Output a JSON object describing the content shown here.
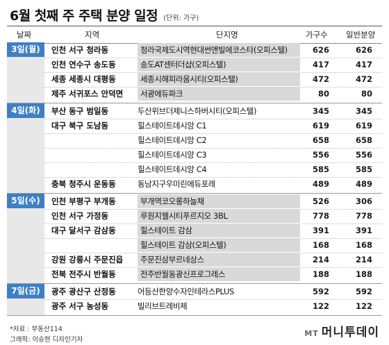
{
  "title": "6월 첫째 주 주택 분양 일정",
  "unit": "(단위: 가구)",
  "header": {
    "date": "날짜",
    "region": "지역",
    "complex": "단지명",
    "total": "가구수",
    "general": "일반분양"
  },
  "groups": [
    {
      "day": "3일(월)",
      "rows": [
        {
          "region": "인천 서구 청라동",
          "complex": "청라국제도시역현대썬앤빌에코스타(오피스텔)",
          "total": "626",
          "general": "626"
        },
        {
          "region": "인천 연수구 송도동",
          "complex": "송도AT센터더샵(오피스텔)",
          "total": "417",
          "general": "417"
        },
        {
          "region": "세종 세종시 대평동",
          "complex": "세종시해피라움시티(오피스텔)",
          "total": "472",
          "general": "472"
        },
        {
          "region": "제주 서귀포스 안덕면",
          "complex": "서광에듀파크",
          "total": "80",
          "general": "80"
        }
      ]
    },
    {
      "day": "4일(화)",
      "rows": [
        {
          "region": "부산 동구 범일동",
          "complex": "두산위브더제니스하버시티(오피스텔)",
          "total": "345",
          "general": "345"
        },
        {
          "region": "대구 북구 도남동",
          "complex": "힐스테이트데시앙 C1",
          "total": "619",
          "general": "619"
        },
        {
          "region": "",
          "complex": "힐스테이트데시앙 C2",
          "total": "658",
          "general": "658"
        },
        {
          "region": "",
          "complex": "힐스테이트데시앙 C3",
          "total": "556",
          "general": "556"
        },
        {
          "region": "",
          "complex": "힐스테이트데시앙 C4",
          "total": "585",
          "general": "585"
        },
        {
          "region": "충북 청주시 운동동",
          "complex": "동남지구우미린에듀포레",
          "total": "489",
          "general": "489"
        }
      ]
    },
    {
      "day": "5일(수)",
      "rows": [
        {
          "region": "인천 부평구 부개동",
          "complex": "부개역코오롱하늘채",
          "total": "526",
          "general": "306"
        },
        {
          "region": "인천 서구 가정동",
          "complex": "루원지웰시티푸르지오 3BL",
          "total": "778",
          "general": "778"
        },
        {
          "region": "대구 달서구 감삼동",
          "complex": "힐스테이트 감삼",
          "total": "391",
          "general": "391"
        },
        {
          "region": "",
          "complex": "힐스테이트 감삼(오피스텔)",
          "total": "168",
          "general": "168"
        },
        {
          "region": "강원 강릉시 주문진읍",
          "complex": "주문진삼부르네상스",
          "total": "214",
          "general": "214"
        },
        {
          "region": "전북 전주시 반월동",
          "complex": "전주반월동광신프로그레스",
          "total": "188",
          "general": "188"
        }
      ]
    },
    {
      "day": "7일(금)",
      "rows": [
        {
          "region": "광주 광산구 산정동",
          "complex": "어등산한양수자인테라스PLUS",
          "total": "592",
          "general": "592"
        },
        {
          "region": "광주 서구 농성동",
          "complex": "빌리브트레비체",
          "total": "122",
          "general": "122"
        }
      ]
    }
  ],
  "footer": {
    "source": "*자료 : 부동산114",
    "graphic": "그래픽: 이승현 디자인기자"
  },
  "logo": {
    "mark": "MT",
    "name": "머니투데이"
  }
}
